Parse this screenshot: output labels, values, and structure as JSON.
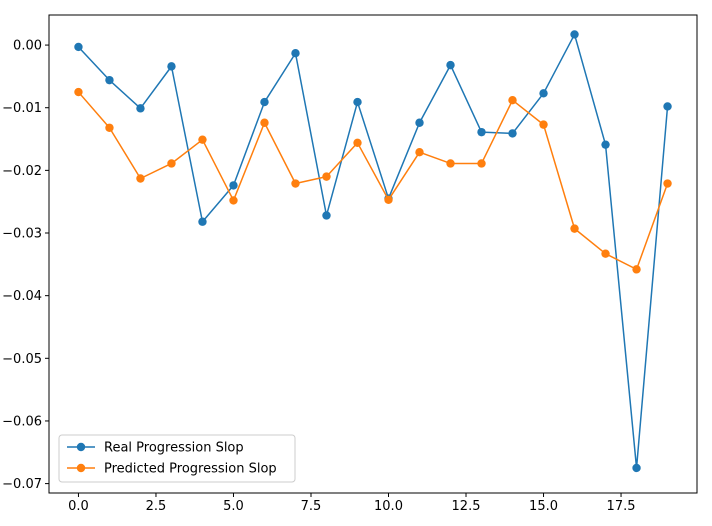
{
  "chart_data": {
    "type": "line",
    "title": "",
    "xlabel": "",
    "ylabel": "",
    "x": [
      0,
      1,
      2,
      3,
      4,
      5,
      6,
      7,
      8,
      9,
      10,
      11,
      12,
      13,
      14,
      15,
      16,
      17,
      18,
      19
    ],
    "xlim": [
      -0.95,
      19.95
    ],
    "ylim": [
      -0.0715,
      0.0048
    ],
    "x_ticks": [
      0.0,
      2.5,
      5.0,
      7.5,
      10.0,
      12.5,
      15.0,
      17.5
    ],
    "x_tick_labels": [
      "0.0",
      "2.5",
      "5.0",
      "7.5",
      "10.0",
      "12.5",
      "15.0",
      "17.5"
    ],
    "y_ticks": [
      0.0,
      -0.01,
      -0.02,
      -0.03,
      -0.04,
      -0.05,
      -0.06,
      -0.07
    ],
    "y_tick_labels": [
      "0.00",
      "−0.01",
      "−0.02",
      "−0.03",
      "−0.04",
      "−0.05",
      "−0.06",
      "−0.07"
    ],
    "grid": false,
    "legend_position": "lower-left",
    "series": [
      {
        "name": "Real Progression Slop",
        "color": "#1f77b4",
        "marker": "circle",
        "values": [
          -0.0003,
          -0.0056,
          -0.0101,
          -0.0034,
          -0.0282,
          -0.0224,
          -0.0091,
          -0.0013,
          -0.0272,
          -0.0091,
          -0.0245,
          -0.0124,
          -0.0032,
          -0.0139,
          -0.0141,
          -0.0077,
          0.0017,
          -0.0159,
          -0.0675,
          -0.0098
        ]
      },
      {
        "name": "Predicted Progression Slop",
        "color": "#ff7f0e",
        "marker": "circle",
        "values": [
          -0.0075,
          -0.0132,
          -0.0213,
          -0.0189,
          -0.0151,
          -0.0248,
          -0.0124,
          -0.0221,
          -0.021,
          -0.0156,
          -0.0247,
          -0.0171,
          -0.0189,
          -0.0189,
          -0.0088,
          -0.0127,
          -0.0293,
          -0.0333,
          -0.0358,
          -0.0221
        ]
      }
    ]
  }
}
